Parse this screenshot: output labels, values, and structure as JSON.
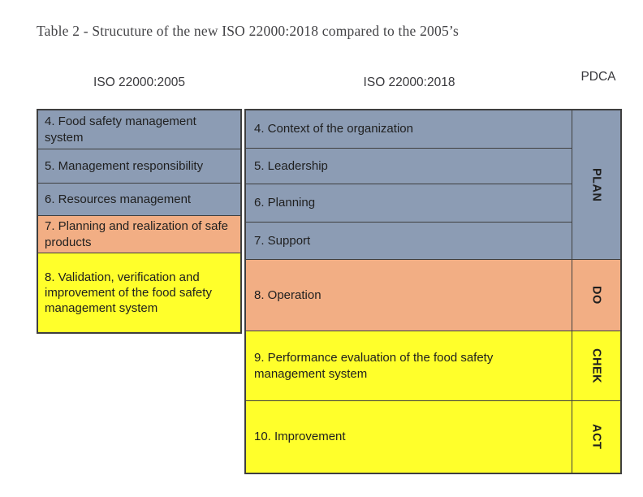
{
  "title": "Table 2 - Strucuture of the new ISO 22000:2018 compared to the 2005’s",
  "headers": {
    "col2005": "ISO 22000:2005",
    "col2018": "ISO 22000:2018",
    "pdca": "PDCA"
  },
  "colors": {
    "blue": "#8C9CB4",
    "orange": "#F2AE84",
    "yellow": "#FFFF2B",
    "border": "#3f3f3f",
    "text": "#1f1f1f"
  },
  "table_2005": {
    "rows": [
      {
        "label": "4. Food safety management system",
        "color": "blue"
      },
      {
        "label": "5. Management responsibility",
        "color": "blue"
      },
      {
        "label": "6. Resources management",
        "color": "blue"
      },
      {
        "label": "7. Planning and realization of safe products",
        "color": "orange"
      },
      {
        "label": "8. Validation, verification and improvement of the food safety management system",
        "color": "yellow"
      }
    ]
  },
  "table_2018": {
    "rows": [
      {
        "label": "4. Context of the organization",
        "color": "blue"
      },
      {
        "label": "5. Leadership",
        "color": "blue"
      },
      {
        "label": "6. Planning",
        "color": "blue"
      },
      {
        "label": "7. Support",
        "color": "blue"
      },
      {
        "label": "8. Operation",
        "color": "orange"
      },
      {
        "label": "9. Performance evaluation of the food safety management system",
        "color": "yellow"
      },
      {
        "label": "10. Improvement",
        "color": "yellow"
      }
    ]
  },
  "pdca_cells": [
    {
      "label": "PLAN",
      "color": "blue"
    },
    {
      "label": "DO",
      "color": "orange"
    },
    {
      "label": "CHEK",
      "color": "yellow"
    },
    {
      "label": "ACT",
      "color": "yellow"
    }
  ],
  "chart_data": {
    "type": "table",
    "title": "Table 2 - Strucuture of the new ISO 22000:2018 compared to the 2005’s",
    "columns": [
      "ISO 22000:2005",
      "ISO 22000:2018",
      "PDCA"
    ],
    "mapping": [
      {
        "iso2005": "4. Food safety management system",
        "iso2018": "4. Context of the organization",
        "pdca": "PLAN"
      },
      {
        "iso2005": "5. Management responsibility",
        "iso2018": "5. Leadership",
        "pdca": "PLAN"
      },
      {
        "iso2005": "6. Resources management",
        "iso2018": "6. Planning",
        "pdca": "PLAN"
      },
      {
        "iso2005": "7. Planning and realization of safe products",
        "iso2018": "7. Support",
        "pdca": "PLAN"
      },
      {
        "iso2005": "8. Validation, verification and improvement of the food safety management system",
        "iso2018": "8. Operation",
        "pdca": "DO"
      },
      {
        "iso2005": "",
        "iso2018": "9. Performance evaluation of the food safety management system",
        "pdca": "CHEK"
      },
      {
        "iso2005": "",
        "iso2018": "10. Improvement",
        "pdca": "ACT"
      }
    ]
  }
}
